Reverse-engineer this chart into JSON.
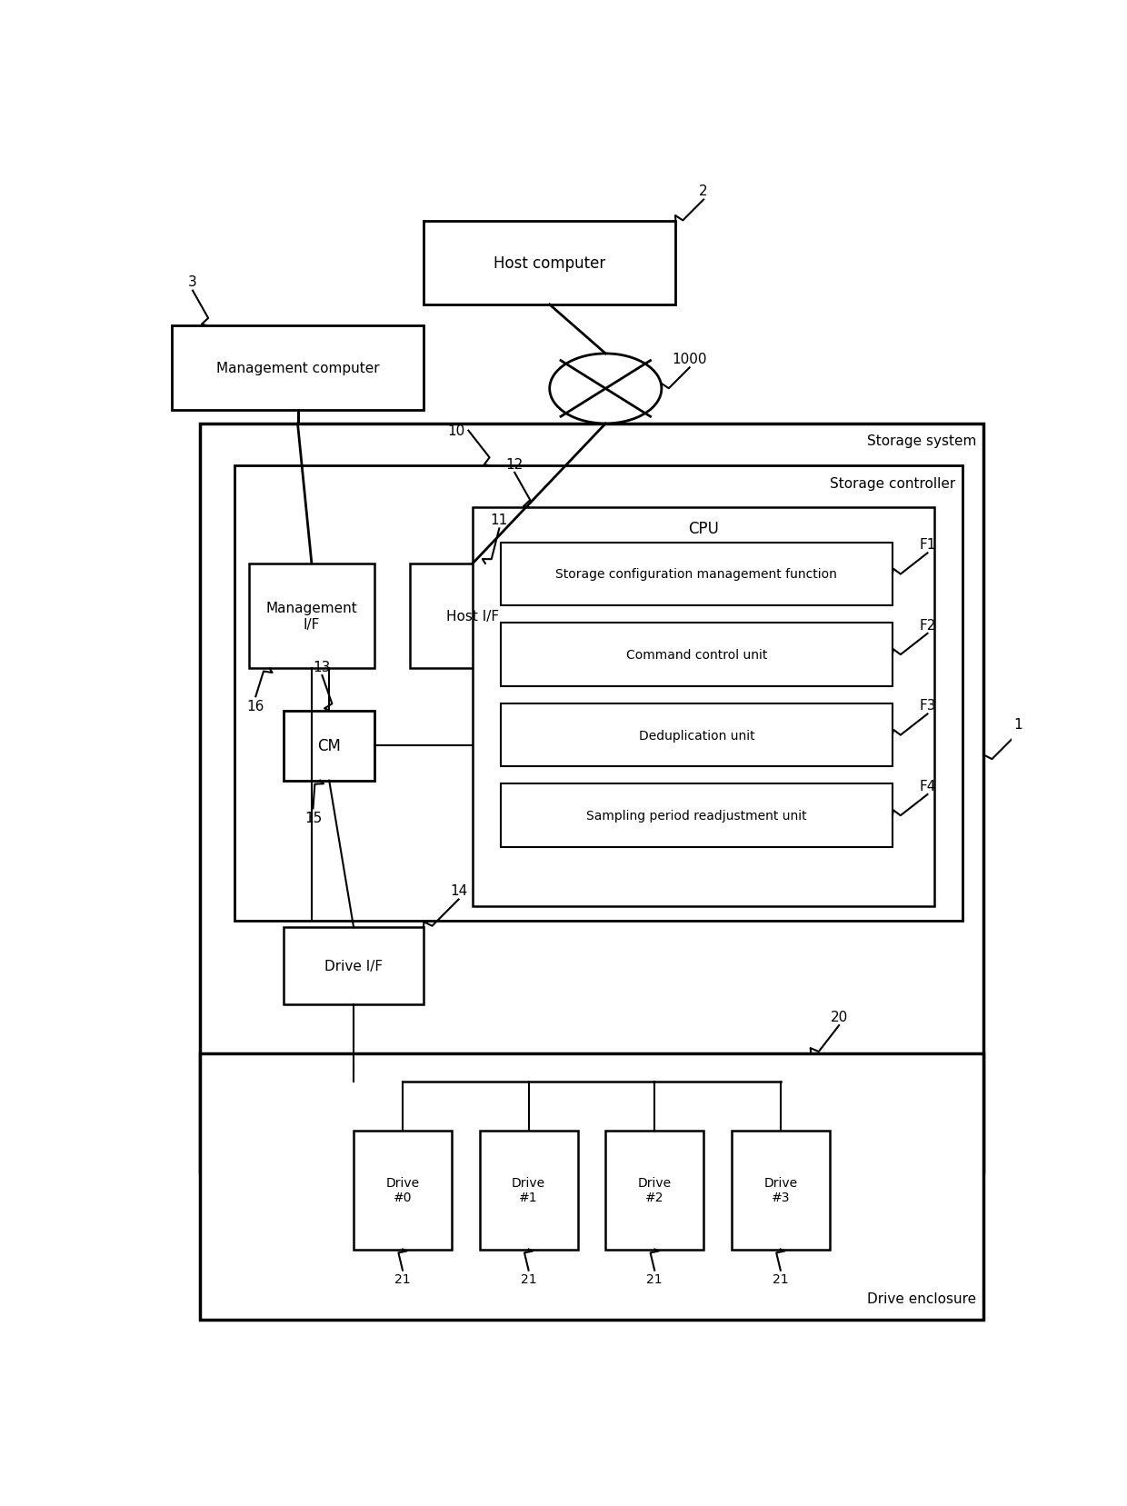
{
  "bg_color": "#ffffff",
  "labels": {
    "host_computer": "Host computer",
    "management_computer": "Management computer",
    "storage_system": "Storage system",
    "storage_controller": "Storage controller",
    "management_if": "Management\nI/F",
    "host_if": "Host I/F",
    "cpu": "CPU",
    "f1": "Storage configuration management function",
    "f2": "Command control unit",
    "f3": "Deduplication unit",
    "f4": "Sampling period readjustment unit",
    "cm": "CM",
    "drive_if": "Drive I/F",
    "drive_enclosure": "Drive enclosure",
    "drives": [
      "Drive\n#0",
      "Drive\n#1",
      "Drive\n#2",
      "Drive\n#3"
    ]
  },
  "refs": {
    "r1": "1",
    "r2": "2",
    "r3": "3",
    "r10": "10",
    "r11": "11",
    "r12": "12",
    "r13": "13",
    "r14": "14",
    "r15": "15",
    "r16": "16",
    "r20": "20",
    "r21": "21",
    "r1000": "1000",
    "f1": "F1",
    "f2": "F2",
    "f3": "F3",
    "f4": "F4"
  }
}
